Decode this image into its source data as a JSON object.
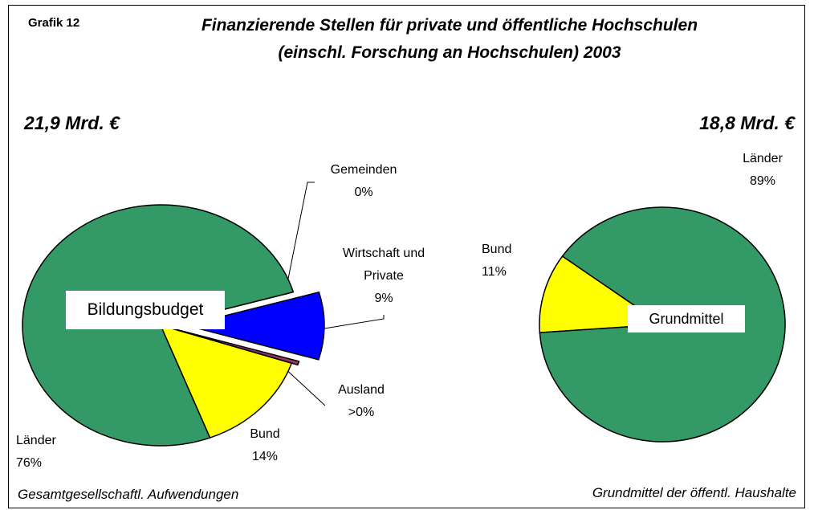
{
  "figure": "Grafik 12",
  "title": [
    "Finanzierende Stellen für private und öffentliche Hochschulen",
    "(einschl. Forschung an Hochschulen) 2003"
  ],
  "chart_data": [
    {
      "type": "pie",
      "total": "21,9 Mrd. €",
      "center_label": "Bildungsbudget",
      "caption": "Gesamtgesellschaftl. Aufwendungen",
      "categories": [
        "Gemeinden",
        "Wirtschaft und Private",
        "Ausland",
        "Bund",
        "Länder"
      ],
      "values": [
        0,
        9,
        0.5,
        14,
        76
      ],
      "value_labels": [
        "0%",
        "9%",
        ">0%",
        "14%",
        "76%"
      ],
      "colors": [
        "#ccffff",
        "#0000ff",
        "#993366",
        "#ffff00",
        "#339966"
      ],
      "exploded": [
        false,
        true,
        true,
        false,
        false
      ]
    },
    {
      "type": "pie",
      "total": "18,8 Mrd. €",
      "center_label": "Grundmittel",
      "caption": "Grundmittel der öffentl. Haushalte",
      "categories": [
        "Bund",
        "Länder"
      ],
      "values": [
        11,
        89
      ],
      "value_labels": [
        "11%",
        "89%"
      ],
      "colors": [
        "#ffff00",
        "#339966"
      ],
      "exploded": [
        false,
        false
      ]
    }
  ]
}
